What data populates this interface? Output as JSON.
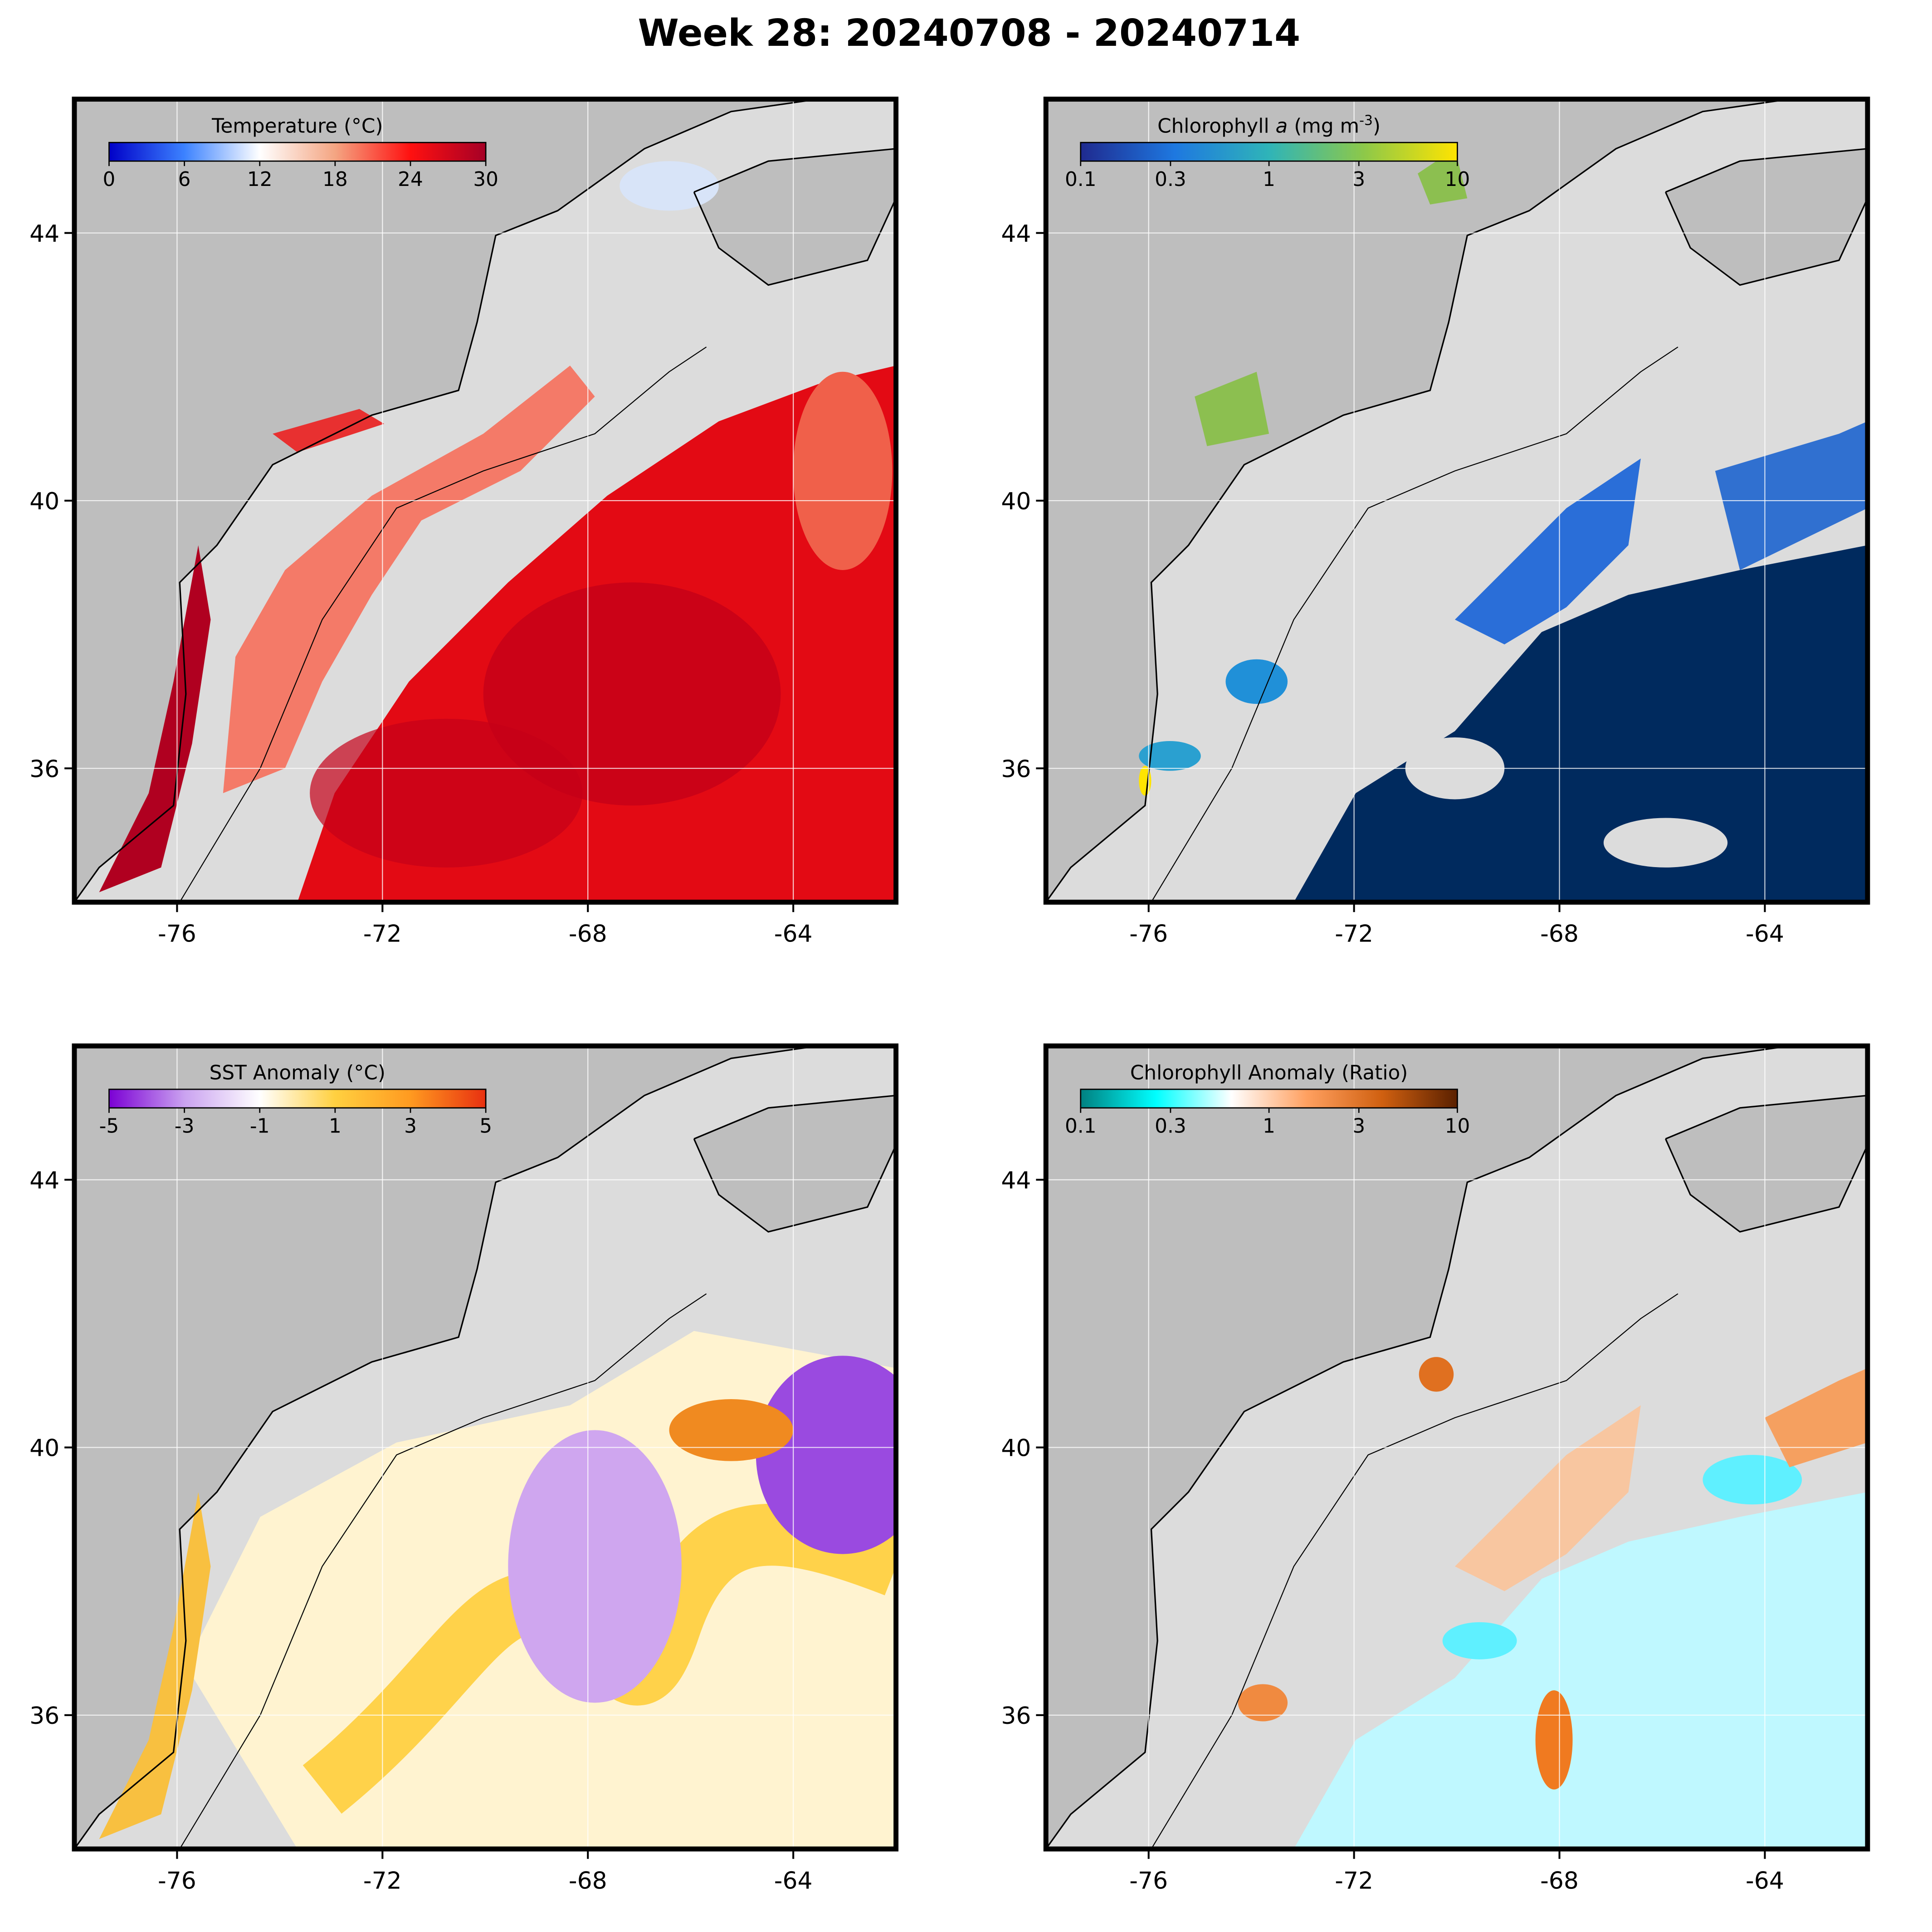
{
  "title": "Week 28: 20240708 - 20240714",
  "lon_lim": [
    -78,
    -62
  ],
  "lat_lim": [
    34,
    46
  ],
  "lon_ticks": [
    -76,
    -72,
    -68,
    -64
  ],
  "lat_ticks": [
    44,
    40,
    36
  ],
  "grid": true,
  "panels": [
    {
      "colorbar": {
        "label": [
          {
            "text": "Temperature (°C)"
          }
        ],
        "ticks": [
          0,
          6,
          12,
          18,
          24,
          30
        ],
        "range": [
          0,
          30
        ],
        "scale": "linear",
        "colors": [
          "#0000c8",
          "#3c82ff",
          "#ffffff",
          "#f4a582",
          "#ff1010",
          "#a50026"
        ]
      }
    },
    {
      "colorbar": {
        "label": [
          {
            "text": "Chlorophyll "
          },
          {
            "text": "a",
            "style": "italic"
          },
          {
            "text": " (mg m"
          },
          {
            "text": "-3",
            "style": "super"
          },
          {
            "text": ")"
          }
        ],
        "ticks": [
          0.1,
          0.3,
          1,
          3,
          10
        ],
        "range": [
          0.1,
          10
        ],
        "scale": "log",
        "colors": [
          "#1f2a8f",
          "#1e78e0",
          "#2fb4b8",
          "#8cc84a",
          "#ffe400"
        ]
      }
    },
    {
      "colorbar": {
        "label": [
          {
            "text": "SST Anomaly (°C)"
          }
        ],
        "ticks": [
          -5,
          -3,
          -1,
          1,
          3,
          5
        ],
        "range": [
          -5,
          5
        ],
        "scale": "linear",
        "colors": [
          "#7b00d4",
          "#caa2f0",
          "#ffffff",
          "#ffd040",
          "#ff9a20",
          "#e83010"
        ]
      }
    },
    {
      "colorbar": {
        "label": [
          {
            "text": "Chlorophyll Anomaly (Ratio)"
          }
        ],
        "ticks": [
          0.1,
          0.3,
          1,
          3,
          10
        ],
        "range": [
          0.1,
          10
        ],
        "scale": "log",
        "colors": [
          "#008080",
          "#00ffff",
          "#ffffff",
          "#ffa060",
          "#d06010",
          "#5a2000"
        ]
      }
    }
  ]
}
